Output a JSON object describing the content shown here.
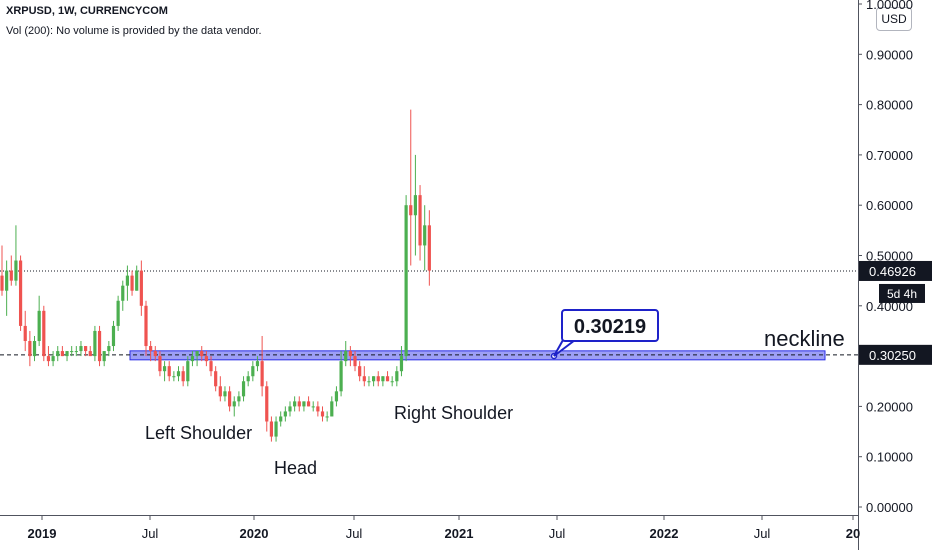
{
  "header": {
    "symbol_line": "XRPUSD, 1W, CURRENCYCOM",
    "volume_line": "Vol (200): No volume is provided by the data vendor."
  },
  "currency_button": "USD",
  "colors": {
    "up": "#26a69a",
    "green_body": "#4caf50",
    "down": "#ef5350",
    "neckline_band": "#5b5ff0",
    "label_border": "#1e22c9",
    "price_tag": "#131722"
  },
  "chart_data": {
    "type": "candlestick",
    "title": "XRPUSD, 1W, CURRENCYCOM",
    "x_ticks": [
      "2019",
      "Jul",
      "2020",
      "Jul",
      "2021",
      "Jul",
      "2022",
      "Jul",
      "20"
    ],
    "y_ticks": [
      "0.00000",
      "0.10000",
      "0.20000",
      "0.30000",
      "0.40000",
      "0.50000",
      "0.60000",
      "0.70000",
      "0.80000",
      "0.90000",
      "1.00000"
    ],
    "ylim": [
      0.0,
      1.0
    ],
    "last_price_label": "0.46926",
    "last_price": 0.46926,
    "countdown_label": "5d 4h",
    "neckline_price_label": "0.30250",
    "neckline_price": 0.3025,
    "callout_label": "0.30219",
    "callout_price": 0.30219,
    "annotations": [
      "Left Shoulder",
      "Head",
      "Right Shoulder",
      "neckline"
    ],
    "candles": [
      [
        0.46,
        0.52,
        0.42,
        0.43
      ],
      [
        0.43,
        0.49,
        0.38,
        0.47
      ],
      [
        0.47,
        0.5,
        0.44,
        0.45
      ],
      [
        0.45,
        0.56,
        0.44,
        0.49
      ],
      [
        0.49,
        0.5,
        0.35,
        0.36
      ],
      [
        0.36,
        0.39,
        0.31,
        0.33
      ],
      [
        0.33,
        0.35,
        0.28,
        0.3
      ],
      [
        0.3,
        0.34,
        0.29,
        0.33
      ],
      [
        0.33,
        0.42,
        0.32,
        0.39
      ],
      [
        0.39,
        0.4,
        0.29,
        0.3
      ],
      [
        0.3,
        0.32,
        0.28,
        0.29
      ],
      [
        0.29,
        0.31,
        0.28,
        0.3
      ],
      [
        0.3,
        0.32,
        0.29,
        0.31
      ],
      [
        0.31,
        0.32,
        0.3,
        0.3
      ],
      [
        0.3,
        0.31,
        0.29,
        0.31
      ],
      [
        0.31,
        0.32,
        0.3,
        0.31
      ],
      [
        0.31,
        0.32,
        0.3,
        0.31
      ],
      [
        0.31,
        0.33,
        0.3,
        0.32
      ],
      [
        0.32,
        0.32,
        0.3,
        0.31
      ],
      [
        0.31,
        0.32,
        0.3,
        0.3
      ],
      [
        0.3,
        0.36,
        0.29,
        0.35
      ],
      [
        0.35,
        0.36,
        0.28,
        0.29
      ],
      [
        0.29,
        0.31,
        0.28,
        0.31
      ],
      [
        0.31,
        0.33,
        0.3,
        0.32
      ],
      [
        0.32,
        0.37,
        0.31,
        0.36
      ],
      [
        0.36,
        0.42,
        0.35,
        0.41
      ],
      [
        0.41,
        0.45,
        0.39,
        0.44
      ],
      [
        0.44,
        0.48,
        0.41,
        0.46
      ],
      [
        0.46,
        0.47,
        0.42,
        0.43
      ],
      [
        0.43,
        0.48,
        0.43,
        0.47
      ],
      [
        0.47,
        0.49,
        0.38,
        0.4
      ],
      [
        0.4,
        0.41,
        0.3,
        0.32
      ],
      [
        0.32,
        0.33,
        0.29,
        0.31
      ],
      [
        0.31,
        0.32,
        0.29,
        0.3
      ],
      [
        0.3,
        0.31,
        0.26,
        0.27
      ],
      [
        0.27,
        0.29,
        0.25,
        0.28
      ],
      [
        0.28,
        0.29,
        0.25,
        0.26
      ],
      [
        0.26,
        0.27,
        0.25,
        0.26
      ],
      [
        0.26,
        0.28,
        0.25,
        0.27
      ],
      [
        0.27,
        0.28,
        0.24,
        0.25
      ],
      [
        0.25,
        0.3,
        0.24,
        0.29
      ],
      [
        0.29,
        0.31,
        0.28,
        0.3
      ],
      [
        0.3,
        0.31,
        0.28,
        0.31
      ],
      [
        0.31,
        0.32,
        0.29,
        0.3
      ],
      [
        0.3,
        0.31,
        0.28,
        0.29
      ],
      [
        0.29,
        0.3,
        0.26,
        0.27
      ],
      [
        0.27,
        0.28,
        0.23,
        0.24
      ],
      [
        0.24,
        0.26,
        0.21,
        0.22
      ],
      [
        0.22,
        0.24,
        0.21,
        0.23
      ],
      [
        0.23,
        0.24,
        0.19,
        0.2
      ],
      [
        0.2,
        0.22,
        0.18,
        0.21
      ],
      [
        0.21,
        0.23,
        0.2,
        0.22
      ],
      [
        0.22,
        0.26,
        0.21,
        0.25
      ],
      [
        0.25,
        0.27,
        0.24,
        0.26
      ],
      [
        0.26,
        0.29,
        0.25,
        0.28
      ],
      [
        0.28,
        0.3,
        0.27,
        0.29
      ],
      [
        0.29,
        0.34,
        0.22,
        0.24
      ],
      [
        0.24,
        0.25,
        0.15,
        0.17
      ],
      [
        0.17,
        0.18,
        0.13,
        0.14
      ],
      [
        0.14,
        0.18,
        0.13,
        0.17
      ],
      [
        0.17,
        0.19,
        0.16,
        0.18
      ],
      [
        0.18,
        0.2,
        0.17,
        0.19
      ],
      [
        0.19,
        0.21,
        0.18,
        0.2
      ],
      [
        0.2,
        0.22,
        0.19,
        0.21
      ],
      [
        0.21,
        0.22,
        0.19,
        0.2
      ],
      [
        0.2,
        0.21,
        0.19,
        0.21
      ],
      [
        0.21,
        0.22,
        0.2,
        0.2
      ],
      [
        0.2,
        0.21,
        0.19,
        0.2
      ],
      [
        0.2,
        0.21,
        0.18,
        0.19
      ],
      [
        0.19,
        0.2,
        0.17,
        0.18
      ],
      [
        0.18,
        0.19,
        0.17,
        0.18
      ],
      [
        0.18,
        0.22,
        0.18,
        0.21
      ],
      [
        0.21,
        0.24,
        0.2,
        0.23
      ],
      [
        0.23,
        0.31,
        0.22,
        0.29
      ],
      [
        0.29,
        0.33,
        0.28,
        0.31
      ],
      [
        0.31,
        0.32,
        0.28,
        0.3
      ],
      [
        0.3,
        0.31,
        0.27,
        0.28
      ],
      [
        0.28,
        0.29,
        0.25,
        0.26
      ],
      [
        0.26,
        0.28,
        0.24,
        0.25
      ],
      [
        0.25,
        0.26,
        0.24,
        0.25
      ],
      [
        0.25,
        0.26,
        0.24,
        0.26
      ],
      [
        0.26,
        0.27,
        0.24,
        0.25
      ],
      [
        0.25,
        0.26,
        0.24,
        0.26
      ],
      [
        0.26,
        0.27,
        0.25,
        0.25
      ],
      [
        0.25,
        0.26,
        0.24,
        0.25
      ],
      [
        0.25,
        0.28,
        0.24,
        0.27
      ],
      [
        0.27,
        0.32,
        0.26,
        0.3
      ],
      [
        0.3,
        0.62,
        0.29,
        0.6
      ],
      [
        0.6,
        0.79,
        0.48,
        0.58
      ],
      [
        0.58,
        0.7,
        0.5,
        0.62
      ],
      [
        0.62,
        0.64,
        0.49,
        0.52
      ],
      [
        0.52,
        0.6,
        0.47,
        0.56
      ],
      [
        0.56,
        0.59,
        0.44,
        0.47
      ]
    ]
  }
}
